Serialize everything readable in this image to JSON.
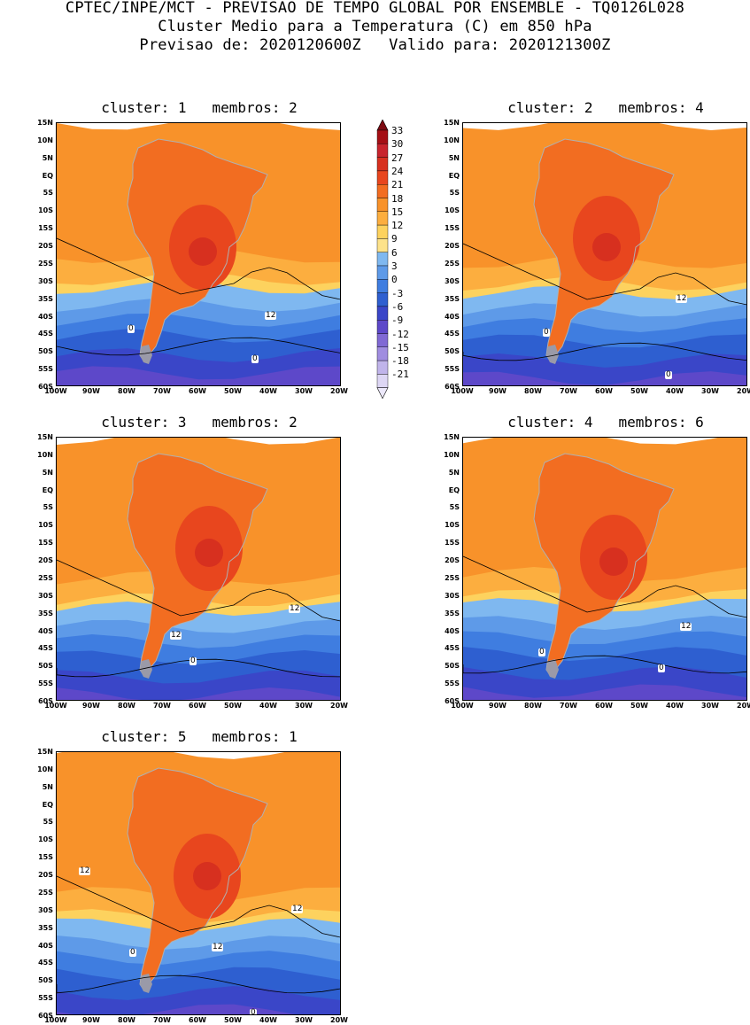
{
  "header": {
    "line1": "CPTEC/INPE/MCT - PREVISAO DE TEMPO GLOBAL POR ENSEMBLE - TQ0126L028",
    "line2": "Cluster Medio para a Temperatura (C) em 850 hPa",
    "line3": "Previsao de: 2020120600Z   Valido para: 2020121300Z"
  },
  "lat_labels": [
    "15N",
    "10N",
    "5N",
    "EQ",
    "5S",
    "10S",
    "15S",
    "20S",
    "25S",
    "30S",
    "35S",
    "40S",
    "45S",
    "50S",
    "55S",
    "60S"
  ],
  "lon_labels": [
    "100W",
    "90W",
    "80W",
    "70W",
    "60W",
    "50W",
    "40W",
    "30W",
    "20W"
  ],
  "colorbar": {
    "labels": [
      "33",
      "30",
      "27",
      "24",
      "21",
      "18",
      "15",
      "12",
      "9",
      "6",
      "3",
      "0",
      "-3",
      "-6",
      "-9",
      "-12",
      "-15",
      "-18",
      "-21"
    ],
    "colors": [
      "#a50f15",
      "#c8242d",
      "#d7301f",
      "#e8461e",
      "#f26d21",
      "#f8922a",
      "#fcae3f",
      "#fdd25e",
      "#fde28a",
      "#7fb8f0",
      "#5e9ae8",
      "#3f7de0",
      "#2e5fd0",
      "#3a46c8",
      "#5d48c9",
      "#8069d4",
      "#a08de0",
      "#c0b4ea",
      "#ddd6f4"
    ],
    "above_color": "#7d0a12",
    "below_color": "#ece8fa"
  },
  "panels": [
    {
      "title": "cluster: 1   membros: 2",
      "contour_labels": [
        "12",
        "0",
        "0"
      ]
    },
    {
      "title": "cluster: 2   membros: 4",
      "contour_labels": [
        "12",
        "0",
        "0"
      ]
    },
    {
      "title": "cluster: 3   membros: 2",
      "contour_labels": [
        "12",
        "12",
        "0"
      ]
    },
    {
      "title": "cluster: 4   membros: 6",
      "contour_labels": [
        "12",
        "0",
        "0"
      ]
    },
    {
      "title": "cluster: 5   membros: 1",
      "contour_labels": [
        "12",
        "12",
        "12",
        "0",
        "0"
      ]
    }
  ]
}
